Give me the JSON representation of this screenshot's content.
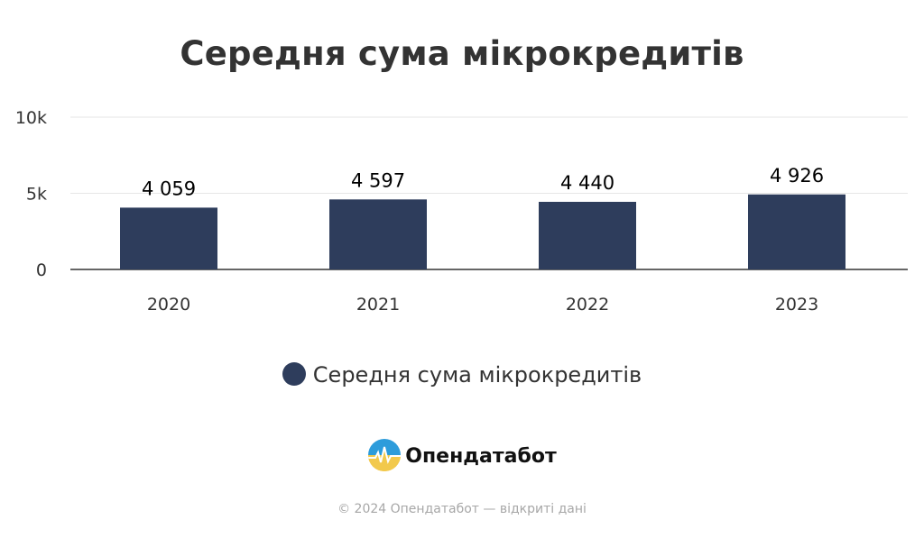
{
  "title": "Середня сума мікрокредитів",
  "colors": {
    "bar": "#2e3d5c",
    "grid": "#e6e6e6",
    "axis": "#333333",
    "text": "#333333",
    "label": "#000000",
    "footer": "#a7a7a7"
  },
  "chart_data": {
    "type": "bar",
    "title": "Середня сума мікрокредитів",
    "categories": [
      "2020",
      "2021",
      "2022",
      "2023"
    ],
    "series": [
      {
        "name": "Середня сума мікрокредитів",
        "values": [
          4059,
          4597,
          4440,
          4926
        ]
      }
    ],
    "data_labels": [
      "4 059",
      "4 597",
      "4 440",
      "4 926"
    ],
    "ylim": [
      0,
      10000
    ],
    "yticks": [
      0,
      5000,
      10000
    ],
    "ytick_labels": [
      "0",
      "5k",
      "10k"
    ],
    "grid": true,
    "legend": "bottom"
  },
  "legend": {
    "label": "Середня сума мікрокредитів"
  },
  "brand": {
    "name": "Опендатабот",
    "logo_icon": "opendatabot-logo-icon"
  },
  "footer": {
    "text": "© 2024 Опендатабот — відкриті дані"
  }
}
